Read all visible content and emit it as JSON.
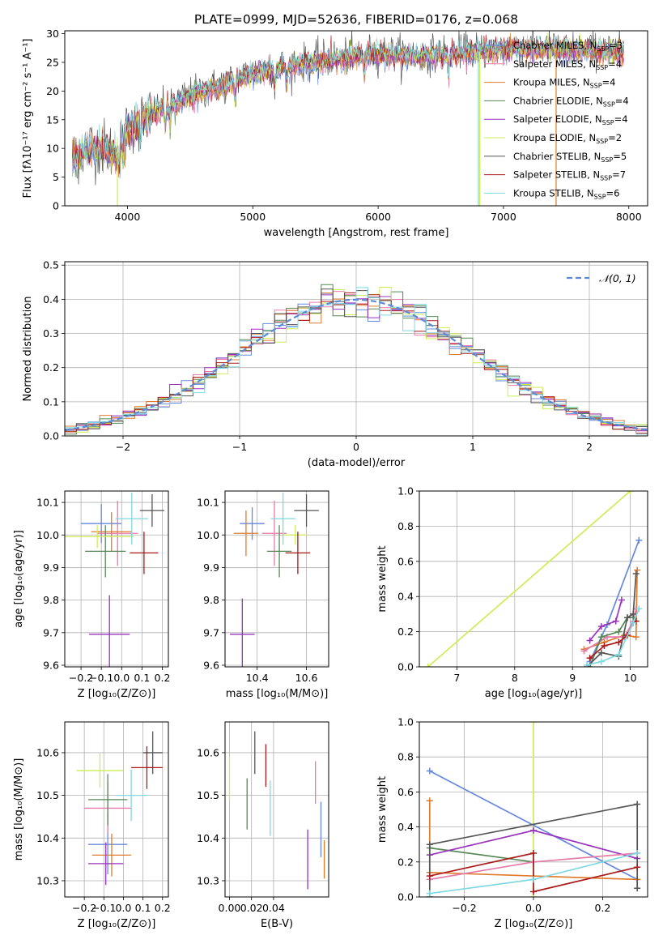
{
  "title": "PLATE=0999, MJD=52636, FIBERID=0176, z=0.068",
  "colors": {
    "chabrier_miles": "#6688dd",
    "salpeter_miles": "#e77aa8",
    "kroupa_miles": "#e07b2b",
    "chabrier_elodie": "#558855",
    "salpeter_elodie": "#9933bb",
    "kroupa_elodie": "#ccee55",
    "chabrier_stelib": "#555555",
    "salpeter_stelib": "#aa1a1a",
    "kroupa_stelib": "#80d8e0"
  },
  "chart_data": [
    {
      "id": "spectrum",
      "type": "line",
      "xlabel": "wavelength [Angstrom, rest frame]",
      "ylabel": "Flux [fλ10⁻¹⁷ erg cm⁻² s⁻¹ A⁻¹]",
      "xlim": [
        3500,
        8150
      ],
      "ylim": [
        0,
        30.5
      ],
      "xticks": [
        4000,
        5000,
        6000,
        7000,
        8000
      ],
      "yticks": [
        0,
        5,
        10,
        15,
        20,
        25,
        30
      ],
      "grid": false,
      "legend_position": "top-right",
      "continuum": {
        "x": [
          3560,
          3700,
          3800,
          3900,
          4000,
          4100,
          4200,
          4300,
          4500,
          4700,
          5000,
          5200,
          5500,
          5800,
          6000,
          6300,
          6600,
          6900,
          7200,
          7500,
          7800,
          7950
        ],
        "y": [
          8,
          10,
          10,
          9,
          13,
          15,
          16,
          17,
          19,
          20.5,
          23,
          24,
          25,
          26,
          26.5,
          26,
          26.5,
          27,
          27.5,
          27,
          27,
          26.5
        ]
      },
      "series": [
        {
          "name": "Chabrier MILES, N_SSP=3",
          "legend": "Chabrier MILES, N",
          "nssp": "=3",
          "color": "#6688dd"
        },
        {
          "name": "Salpeter MILES, N_SSP=4",
          "legend": "Salpeter MILES, N",
          "nssp": "=4",
          "color": "#e77aa8"
        },
        {
          "name": "Kroupa MILES, N_SSP=4",
          "legend": "Kroupa MILES, N",
          "nssp": "=4",
          "color": "#e07b2b"
        },
        {
          "name": "Chabrier ELODIE, N_SSP=4",
          "legend": "Chabrier ELODIE, N",
          "nssp": "=4",
          "color": "#558855"
        },
        {
          "name": "Salpeter ELODIE, N_SSP=4",
          "legend": "Salpeter ELODIE, N",
          "nssp": "=4",
          "color": "#9933bb"
        },
        {
          "name": "Kroupa ELODIE, N_SSP=2",
          "legend": "Kroupa ELODIE, N",
          "nssp": "=2",
          "color": "#ccee55"
        },
        {
          "name": "Chabrier STELIB, N_SSP=5",
          "legend": "Chabrier STELIB, N",
          "nssp": "=5",
          "color": "#555555"
        },
        {
          "name": "Salpeter STELIB, N_SSP=7",
          "legend": "Salpeter STELIB, N",
          "nssp": "=7",
          "color": "#aa1a1a"
        },
        {
          "name": "Kroupa STELIB, N_SSP=6",
          "legend": "Kroupa STELIB, N",
          "nssp": "=6",
          "color": "#80d8e0"
        }
      ],
      "drop_lines": [
        {
          "x": 3920,
          "color": "#ccee55"
        },
        {
          "x": 6810,
          "color": "#ccee55"
        },
        {
          "x": 7420,
          "color": "#e07b2b"
        },
        {
          "x": 6800,
          "color": "#80d8e0"
        }
      ]
    },
    {
      "id": "residuals",
      "type": "line",
      "xlabel": "(data-model)/error",
      "ylabel": "Normed distribution",
      "xlim": [
        -2.5,
        2.5
      ],
      "ylim": [
        0,
        0.51
      ],
      "xticks": [
        -2,
        -1,
        0,
        1,
        2
      ],
      "xtick_labels": [
        "−2",
        "−1",
        "0",
        "1",
        "2"
      ],
      "yticks": [
        0,
        0.1,
        0.2,
        0.3,
        0.4,
        0.5
      ],
      "ytick_labels": [
        "0.0",
        "0.1",
        "0.2",
        "0.3",
        "0.4",
        "0.5"
      ],
      "grid": true,
      "legend": "𝒩(0, 1)",
      "legend_position": "top-right",
      "bin_width": 0.1,
      "gaussian": {
        "mean": 0,
        "sigma": 1
      }
    },
    {
      "id": "age_vs_Z",
      "type": "scatter",
      "xlabel": "Z [log₁₀(Z/Z⊙)]",
      "ylabel": "age  [log₁₀(age/yr)]",
      "xlim": [
        -0.28,
        0.23
      ],
      "ylim": [
        9.595,
        10.135
      ],
      "xticks": [
        -0.2,
        -0.1,
        0.0,
        0.1,
        0.2
      ],
      "xtick_labels": [
        "−0.2",
        "−0.1",
        "0.0",
        "0.1",
        "0.2"
      ],
      "yticks": [
        9.6,
        9.7,
        9.8,
        9.9,
        10.0,
        10.1
      ],
      "ytick_labels": [
        "9.6",
        "9.7",
        "9.8",
        "9.9",
        "10.0",
        "10.1"
      ],
      "grid": true,
      "points": [
        {
          "x": -0.1,
          "y": 10.035,
          "xerr": 0.1,
          "yerr": 0.06,
          "color": "#6688dd"
        },
        {
          "x": -0.02,
          "y": 10.005,
          "xerr": 0.1,
          "yerr": 0.1,
          "color": "#e77aa8"
        },
        {
          "x": -0.05,
          "y": 10.01,
          "xerr": 0.1,
          "yerr": 0.06,
          "color": "#e07b2b"
        },
        {
          "x": -0.08,
          "y": 9.95,
          "xerr": 0.1,
          "yerr": 0.08,
          "color": "#558855"
        },
        {
          "x": -0.06,
          "y": 9.695,
          "xerr": 0.1,
          "yerr": 0.12,
          "color": "#9933bb"
        },
        {
          "x": -0.12,
          "y": 9.995,
          "xerr": 0.18,
          "yerr": 0.035,
          "color": "#ccee55"
        },
        {
          "x": 0.15,
          "y": 10.075,
          "xerr": 0.06,
          "yerr": 0.05,
          "color": "#555555"
        },
        {
          "x": 0.11,
          "y": 9.945,
          "xerr": 0.07,
          "yerr": 0.065,
          "color": "#aa1a1a"
        },
        {
          "x": 0.05,
          "y": 10.05,
          "xerr": 0.08,
          "yerr": 0.08,
          "color": "#80d8e0"
        }
      ]
    },
    {
      "id": "age_vs_mass",
      "type": "scatter",
      "xlabel": "mass [log₁₀(M/M⊙)]",
      "ylabel": "",
      "xlim": [
        10.27,
        10.69
      ],
      "ylim": [
        9.595,
        10.135
      ],
      "xticks": [
        10.4,
        10.6
      ],
      "xtick_labels": [
        "10.4",
        "10.6"
      ],
      "yticks": [
        9.6,
        9.7,
        9.8,
        9.9,
        10.0,
        10.1
      ],
      "ytick_labels": [
        "9.6",
        "9.7",
        "9.8",
        "9.9",
        "10.0",
        "10.1"
      ],
      "grid": true,
      "points": [
        {
          "x": 10.38,
          "y": 10.035,
          "xerr": 0.05,
          "yerr": 0.05,
          "color": "#6688dd"
        },
        {
          "x": 10.47,
          "y": 10.005,
          "xerr": 0.05,
          "yerr": 0.1,
          "color": "#e77aa8"
        },
        {
          "x": 10.355,
          "y": 10.005,
          "xerr": 0.05,
          "yerr": 0.07,
          "color": "#e07b2b"
        },
        {
          "x": 10.49,
          "y": 9.95,
          "xerr": 0.05,
          "yerr": 0.08,
          "color": "#558855"
        },
        {
          "x": 10.34,
          "y": 9.695,
          "xerr": 0.05,
          "yerr": 0.11,
          "color": "#9933bb"
        },
        {
          "x": 10.555,
          "y": 10.0,
          "xerr": 0.05,
          "yerr": 0.03,
          "color": "#ccee55"
        },
        {
          "x": 10.6,
          "y": 10.075,
          "xerr": 0.05,
          "yerr": 0.05,
          "color": "#555555"
        },
        {
          "x": 10.565,
          "y": 9.945,
          "xerr": 0.05,
          "yerr": 0.065,
          "color": "#aa1a1a"
        },
        {
          "x": 10.505,
          "y": 10.05,
          "xerr": 0.05,
          "yerr": 0.08,
          "color": "#80d8e0"
        }
      ]
    },
    {
      "id": "mass_weight_vs_age",
      "type": "line",
      "xlabel": "age  [log₁₀(age/yr)]",
      "ylabel": "mass weight",
      "xlim": [
        6.35,
        10.3
      ],
      "ylim": [
        0,
        1
      ],
      "xticks": [
        7,
        8,
        9,
        10
      ],
      "yticks": [
        0,
        0.2,
        0.4,
        0.6,
        0.8,
        1.0
      ],
      "ytick_labels": [
        "0.0",
        "0.2",
        "0.4",
        "0.6",
        "0.8",
        "1.0"
      ],
      "grid": true,
      "series": [
        {
          "color": "#ccee55",
          "x": [
            6.5,
            10.0
          ],
          "y": [
            0.0,
            1.0
          ]
        },
        {
          "color": "#6688dd",
          "x": [
            9.3,
            9.6,
            10.15
          ],
          "y": [
            0.03,
            0.24,
            0.72
          ]
        },
        {
          "color": "#e07b2b",
          "x": [
            9.2,
            9.55,
            9.9,
            10.1,
            10.12
          ],
          "y": [
            0.1,
            0.14,
            0.18,
            0.17,
            0.55
          ]
        },
        {
          "color": "#e77aa8",
          "x": [
            9.2,
            9.6,
            9.9,
            10.05,
            10.1
          ],
          "y": [
            0.09,
            0.17,
            0.17,
            0.26,
            0.33
          ]
        },
        {
          "color": "#558855",
          "x": [
            9.3,
            9.5,
            9.8,
            9.95,
            10.05
          ],
          "y": [
            0.0,
            0.17,
            0.2,
            0.28,
            0.28
          ]
        },
        {
          "color": "#9933bb",
          "x": [
            9.3,
            9.5,
            9.75,
            9.85
          ],
          "y": [
            0.15,
            0.23,
            0.26,
            0.38
          ]
        },
        {
          "color": "#555555",
          "x": [
            9.25,
            9.5,
            9.8,
            9.95,
            10.05,
            10.1
          ],
          "y": [
            0.0,
            0.08,
            0.06,
            0.28,
            0.3,
            0.53
          ]
        },
        {
          "color": "#aa1a1a",
          "x": [
            9.3,
            9.55,
            9.8,
            9.95,
            10.05,
            10.1
          ],
          "y": [
            0.05,
            0.12,
            0.14,
            0.18,
            0.25,
            0.26
          ]
        },
        {
          "color": "#80d8e0",
          "x": [
            9.25,
            9.5,
            9.8,
            10.05,
            10.15
          ],
          "y": [
            0.01,
            0.03,
            0.07,
            0.25,
            0.33
          ]
        }
      ]
    },
    {
      "id": "mass_vs_Z",
      "type": "scatter",
      "xlabel": "Z [log₁₀(Z/Z⊙)]",
      "ylabel": "mass [log₁₀(M/M⊙)]",
      "xlim": [
        -0.3,
        0.23
      ],
      "ylim": [
        10.262,
        10.672
      ],
      "xticks": [
        -0.2,
        -0.1,
        0.0,
        0.1,
        0.2
      ],
      "xtick_labels": [
        "−0.2",
        "−0.1",
        "0.0",
        "0.1",
        "0.2"
      ],
      "yticks": [
        10.3,
        10.4,
        10.5,
        10.6
      ],
      "ytick_labels": [
        "10.3",
        "10.4",
        "10.5",
        "10.6"
      ],
      "grid": true,
      "points": [
        {
          "x": -0.08,
          "y": 10.385,
          "xerr": 0.1,
          "yerr": 0.07,
          "color": "#6688dd"
        },
        {
          "x": -0.08,
          "y": 10.47,
          "xerr": 0.12,
          "yerr": 0.06,
          "color": "#e77aa8"
        },
        {
          "x": -0.06,
          "y": 10.36,
          "xerr": 0.1,
          "yerr": 0.05,
          "color": "#e07b2b"
        },
        {
          "x": -0.08,
          "y": 10.49,
          "xerr": 0.1,
          "yerr": 0.06,
          "color": "#558855"
        },
        {
          "x": -0.09,
          "y": 10.34,
          "xerr": 0.09,
          "yerr": 0.05,
          "color": "#9933bb"
        },
        {
          "x": -0.12,
          "y": 10.558,
          "xerr": 0.12,
          "yerr": 0.04,
          "color": "#ccee55"
        },
        {
          "x": 0.15,
          "y": 10.6,
          "xerr": 0.05,
          "yerr": 0.05,
          "color": "#555555"
        },
        {
          "x": 0.12,
          "y": 10.565,
          "xerr": 0.08,
          "yerr": 0.05,
          "color": "#aa1a1a"
        },
        {
          "x": 0.04,
          "y": 10.5,
          "xerr": 0.08,
          "yerr": 0.06,
          "color": "#80d8e0"
        }
      ]
    },
    {
      "id": "mass_vs_ebv",
      "type": "scatter",
      "xlabel": "E(B-V)",
      "ylabel": "",
      "xlim": [
        -0.004,
        0.09
      ],
      "ylim": [
        10.262,
        10.672
      ],
      "xticks": [
        0.0,
        0.02,
        0.04
      ],
      "xtick_labels": [
        "0.00",
        "0.02",
        "0.04"
      ],
      "yticks": [
        10.3,
        10.4,
        10.5,
        10.6
      ],
      "ytick_labels": [
        "10.3",
        "10.4",
        "10.5",
        "10.6"
      ],
      "grid": true,
      "points": [
        {
          "x": 0.0,
          "y": 10.54,
          "yerr": 0.05,
          "color": "#ccee55"
        },
        {
          "x": 0.016,
          "y": 10.48,
          "yerr": 0.06,
          "color": "#558855"
        },
        {
          "x": 0.023,
          "y": 10.6,
          "yerr": 0.05,
          "color": "#555555"
        },
        {
          "x": 0.033,
          "y": 10.57,
          "yerr": 0.05,
          "color": "#aa1a1a"
        },
        {
          "x": 0.037,
          "y": 10.47,
          "yerr": 0.065,
          "color": "#80d8e0"
        },
        {
          "x": 0.071,
          "y": 10.35,
          "yerr": 0.07,
          "color": "#9933bb"
        },
        {
          "x": 0.078,
          "y": 10.53,
          "yerr": 0.05,
          "color": "#e77aa8"
        },
        {
          "x": 0.083,
          "y": 10.42,
          "yerr": 0.065,
          "color": "#6688dd"
        },
        {
          "x": 0.086,
          "y": 10.35,
          "yerr": 0.045,
          "color": "#e07b2b"
        }
      ]
    },
    {
      "id": "mass_weight_vs_Z",
      "type": "line",
      "xlabel": "Z [log₁₀(Z/Z⊙)]",
      "ylabel": "mass weight",
      "xlim": [
        -0.33,
        0.33
      ],
      "ylim": [
        0,
        1
      ],
      "xticks": [
        -0.2,
        0.0,
        0.2
      ],
      "xtick_labels": [
        "−0.2",
        "0.0",
        "0.2"
      ],
      "yticks": [
        0,
        0.2,
        0.4,
        0.6,
        0.8,
        1.0
      ],
      "ytick_labels": [
        "0.0",
        "0.2",
        "0.4",
        "0.6",
        "0.8",
        "1.0"
      ],
      "grid": true,
      "series": [
        {
          "color": "#ccee55",
          "x": [
            0.0,
            0.0
          ],
          "y": [
            0.0,
            1.0
          ]
        },
        {
          "color": "#6688dd",
          "x": [
            -0.3,
            0.3
          ],
          "y": [
            0.72,
            0.1
          ]
        },
        {
          "color": "#e07b2b",
          "x": [
            -0.3,
            -0.3,
            0.3
          ],
          "y": [
            0.55,
            0.14,
            0.1
          ]
        },
        {
          "color": "#558855",
          "x": [
            -0.3,
            0.0
          ],
          "y": [
            0.28,
            0.2
          ]
        },
        {
          "color": "#9933bb",
          "x": [
            -0.3,
            0.0,
            0.3
          ],
          "y": [
            0.24,
            0.38,
            0.22
          ]
        },
        {
          "color": "#e77aa8",
          "x": [
            -0.3,
            0.0,
            0.3
          ],
          "y": [
            0.1,
            0.2,
            0.25
          ]
        },
        {
          "color": "#555555",
          "x": [
            -0.3,
            -0.3,
            0.3,
            0.3
          ],
          "y": [
            0.0,
            0.3,
            0.53,
            0.05
          ]
        },
        {
          "color": "#aa1a1a",
          "x": [
            -0.3,
            0.0,
            0.0,
            0.3
          ],
          "y": [
            0.12,
            0.25,
            0.03,
            0.17
          ]
        },
        {
          "color": "#80d8e0",
          "x": [
            -0.3,
            0.0,
            0.3
          ],
          "y": [
            0.02,
            0.1,
            0.25
          ]
        }
      ]
    }
  ]
}
